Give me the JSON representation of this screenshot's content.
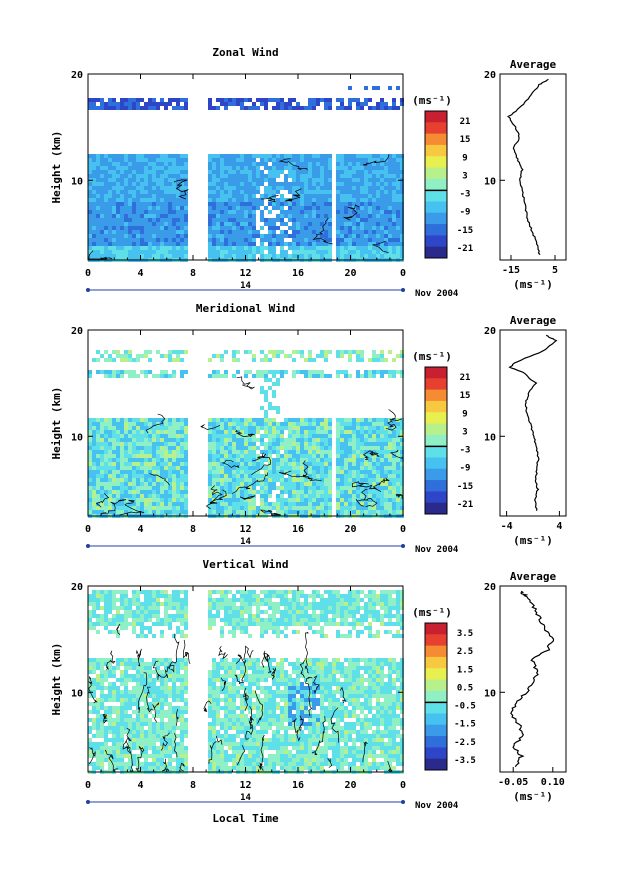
{
  "figure": {
    "xlabel": "Local Time",
    "date_label": "Nov 2004",
    "day_label": "14",
    "unit": "(ms⁻¹)"
  },
  "chart_data": [
    {
      "type": "heatmap",
      "title": "Zonal Wind",
      "ylabel": "Height (km)",
      "xlim": [
        0,
        24
      ],
      "ylim": [
        2.5,
        20
      ],
      "x_ticks": [
        "0",
        "4",
        "8",
        "12",
        "16",
        "20",
        "0"
      ],
      "y_ticks": [
        "10",
        "20"
      ],
      "colorbar_ticks": [
        "21",
        "15",
        "9",
        "3",
        "-3",
        "-9",
        "-15",
        "-21"
      ],
      "gaps": [
        [
          7.6,
          9.0
        ],
        [
          18.4,
          18.8
        ]
      ],
      "average": {
        "title": "Average",
        "xlim": [
          -20,
          10
        ],
        "x_ticks": [
          "-15",
          "5"
        ],
        "xlabel": "(ms⁻¹)",
        "y_ticks": [
          "10",
          "20"
        ],
        "height_km": [
          3,
          4,
          5,
          6,
          7,
          8,
          9,
          10,
          11,
          12,
          13,
          14,
          15,
          16,
          17,
          18,
          19,
          19.5
        ],
        "values": [
          -2,
          -3,
          -5,
          -7,
          -8,
          -9,
          -10,
          -11,
          -10,
          -12,
          -14,
          -11,
          -13,
          -16,
          -10,
          -6,
          -2,
          2
        ]
      }
    },
    {
      "type": "heatmap",
      "title": "Meridional Wind",
      "ylabel": "Height (km)",
      "xlim": [
        0,
        24
      ],
      "ylim": [
        2.5,
        20
      ],
      "x_ticks": [
        "0",
        "4",
        "8",
        "12",
        "16",
        "20",
        "0"
      ],
      "y_ticks": [
        "10",
        "20"
      ],
      "colorbar_ticks": [
        "21",
        "15",
        "9",
        "3",
        "-3",
        "-9",
        "-15",
        "-21"
      ],
      "gaps": [
        [
          7.6,
          9.0
        ],
        [
          18.4,
          18.8
        ]
      ],
      "average": {
        "title": "Average",
        "xlim": [
          -5,
          5
        ],
        "x_ticks": [
          "-4",
          "4"
        ],
        "xlabel": "(ms⁻¹)",
        "y_ticks": [
          "10",
          "20"
        ],
        "height_km": [
          3,
          4,
          5,
          6,
          7,
          8,
          9,
          10,
          11,
          12,
          13,
          14,
          15,
          16,
          16.5,
          17,
          18,
          19,
          19.5
        ],
        "values": [
          0.5,
          0.3,
          0.7,
          0.4,
          0.6,
          0.8,
          0.5,
          0.1,
          -0.3,
          -0.8,
          -1.2,
          -0.7,
          0.4,
          -1.5,
          -3.5,
          -2.5,
          1.5,
          3.5,
          2.0
        ]
      }
    },
    {
      "type": "heatmap",
      "title": "Vertical Wind",
      "ylabel": "Height (km)",
      "xlim": [
        0,
        24
      ],
      "ylim": [
        2.5,
        20
      ],
      "x_ticks": [
        "0",
        "4",
        "8",
        "12",
        "16",
        "20",
        "0"
      ],
      "y_ticks": [
        "10",
        "20"
      ],
      "colorbar_ticks": [
        "3.5",
        "2.5",
        "1.5",
        "0.5",
        "-0.5",
        "-1.5",
        "-2.5",
        "-3.5"
      ],
      "gaps": [
        [
          7.6,
          9.0
        ]
      ],
      "average": {
        "title": "Average",
        "xlim": [
          -0.1,
          0.15
        ],
        "x_ticks": [
          "-0.05",
          "0.10"
        ],
        "xlabel": "(ms⁻¹)",
        "y_ticks": [
          "10",
          "20"
        ],
        "height_km": [
          3,
          4,
          5,
          6,
          7,
          8,
          9,
          10,
          11,
          12,
          13,
          14,
          15,
          16,
          17,
          18,
          19,
          19.5
        ],
        "values": [
          -0.04,
          -0.02,
          -0.05,
          -0.01,
          -0.03,
          -0.06,
          -0.04,
          0.0,
          0.03,
          0.04,
          0.02,
          0.08,
          0.1,
          0.07,
          0.05,
          0.03,
          0.0,
          -0.02
        ]
      }
    }
  ]
}
